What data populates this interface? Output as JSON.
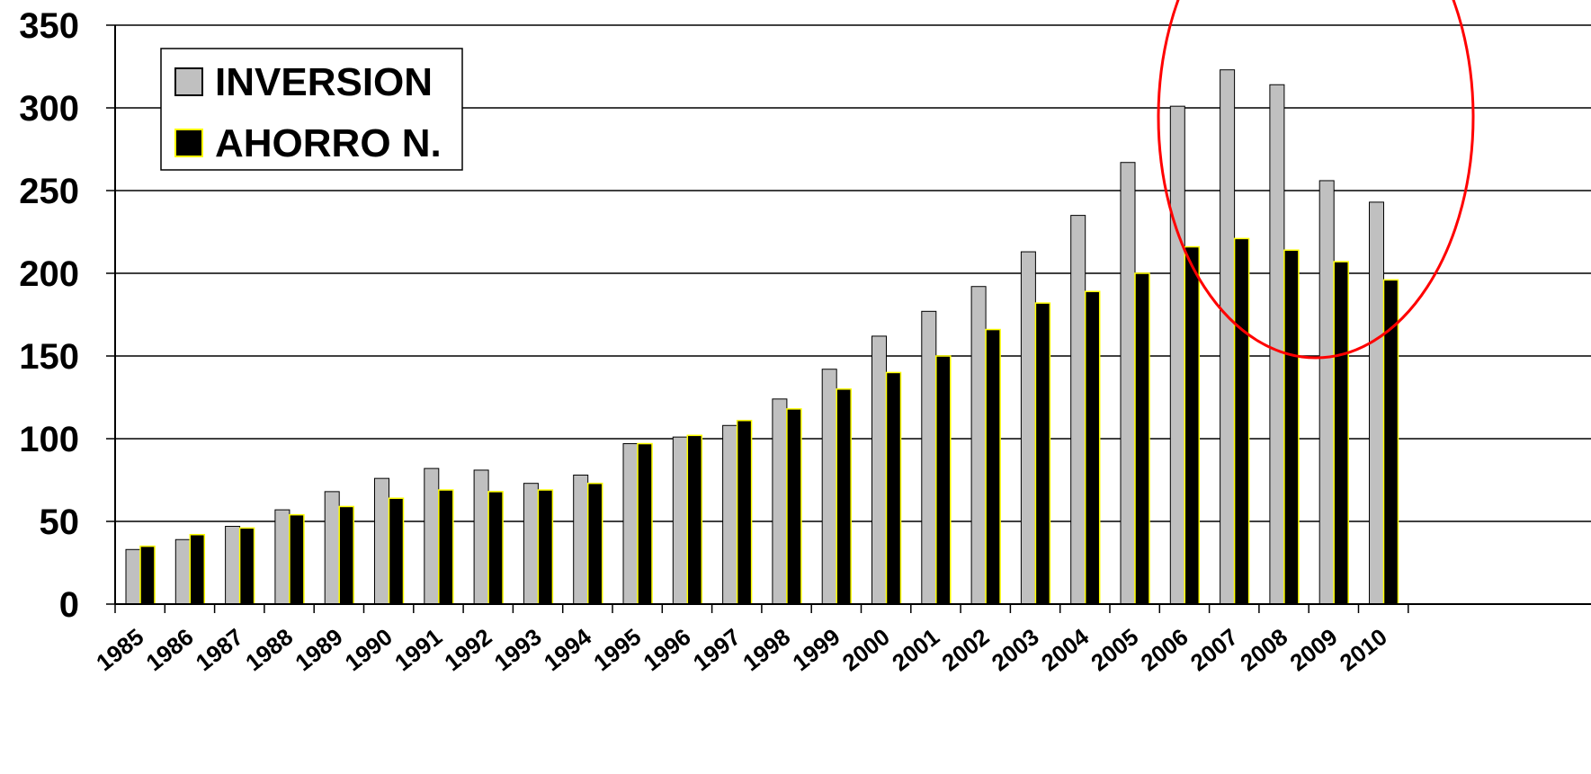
{
  "chart_data": {
    "type": "bar",
    "categories": [
      "1985",
      "1986",
      "1987",
      "1988",
      "1989",
      "1990",
      "1991",
      "1992",
      "1993",
      "1994",
      "1995",
      "1996",
      "1997",
      "1998",
      "1999",
      "2000",
      "2001",
      "2002",
      "2003",
      "2004",
      "2005",
      "2006",
      "2007",
      "2008",
      "2009",
      "2010"
    ],
    "series": [
      {
        "name": "INVERSION",
        "color": "#c0c0c0",
        "values": [
          33,
          39,
          47,
          57,
          68,
          76,
          82,
          81,
          73,
          78,
          97,
          101,
          108,
          124,
          142,
          162,
          177,
          192,
          213,
          235,
          267,
          301,
          323,
          314,
          256,
          243
        ]
      },
      {
        "name": "AHORRO N.",
        "color": "#000000",
        "values": [
          35,
          42,
          46,
          54,
          59,
          64,
          69,
          68,
          69,
          73,
          97,
          102,
          111,
          118,
          130,
          140,
          150,
          166,
          182,
          189,
          200,
          216,
          221,
          214,
          207,
          196
        ]
      }
    ],
    "title": "",
    "xlabel": "",
    "ylabel": "",
    "ylim": [
      0,
      350
    ],
    "yticks": [
      "0",
      "50",
      "100",
      "150",
      "200",
      "250",
      "300",
      "350"
    ],
    "grid": true,
    "legend_position": "top-left",
    "annotation": "red ellipse highlighting 2006-2010"
  }
}
